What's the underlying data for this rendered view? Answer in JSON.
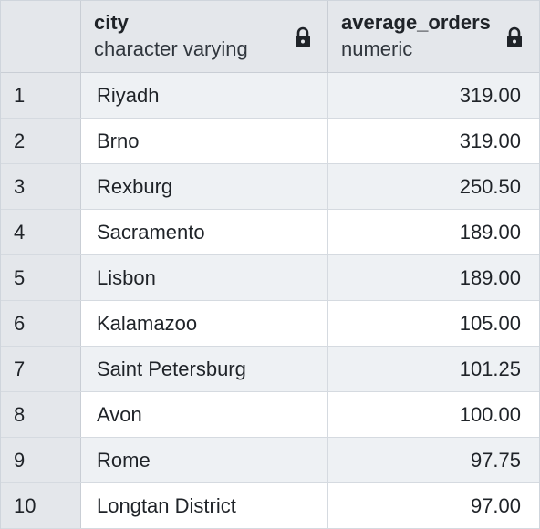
{
  "columns": [
    {
      "name": "city",
      "type": "character varying",
      "icon": "lock-icon"
    },
    {
      "name": "average_orders",
      "type": "numeric",
      "icon": "lock-icon"
    }
  ],
  "rows": [
    {
      "index": "1",
      "city": "Riyadh",
      "average_orders": "319.00"
    },
    {
      "index": "2",
      "city": "Brno",
      "average_orders": "319.00"
    },
    {
      "index": "3",
      "city": "Rexburg",
      "average_orders": "250.50"
    },
    {
      "index": "4",
      "city": "Sacramento",
      "average_orders": "189.00"
    },
    {
      "index": "5",
      "city": "Lisbon",
      "average_orders": "189.00"
    },
    {
      "index": "6",
      "city": "Kalamazoo",
      "average_orders": "105.00"
    },
    {
      "index": "7",
      "city": "Saint Petersburg",
      "average_orders": "101.25"
    },
    {
      "index": "8",
      "city": "Avon",
      "average_orders": "100.00"
    },
    {
      "index": "9",
      "city": "Rome",
      "average_orders": "97.75"
    },
    {
      "index": "10",
      "city": "Longtan District",
      "average_orders": "97.00"
    }
  ]
}
